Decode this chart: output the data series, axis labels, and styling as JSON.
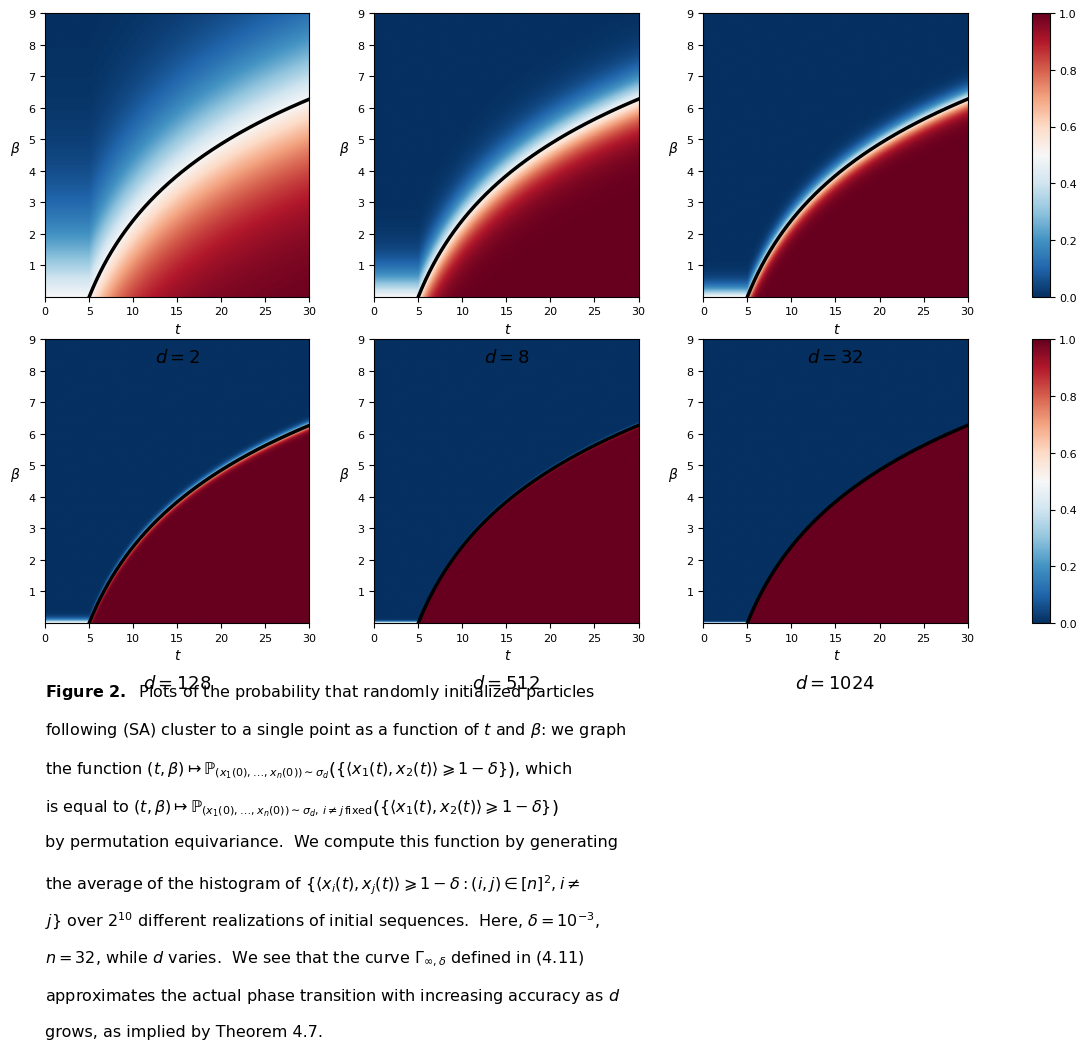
{
  "d_values": [
    2,
    8,
    32,
    128,
    512,
    1024
  ],
  "t_range": [
    0,
    30
  ],
  "beta_range": [
    0,
    9
  ],
  "t_points": 400,
  "beta_points": 400,
  "colormap": "RdBu_r",
  "curve_color": "black",
  "curve_lw": 2.5,
  "cbar_ticks": [
    0.0,
    0.2,
    0.4,
    0.6,
    0.8,
    1.0
  ],
  "xlabel": "t",
  "ylabel": "β",
  "figure_width": 10.8,
  "figure_height": 10.7,
  "t0_curve": 5.0,
  "c_curve": 3.5,
  "log_mode": true,
  "sharpness_d2": 0.7,
  "sharpness_d8": 2.0,
  "sharpness_d32": 5.0,
  "sharpness_d128": 15.0,
  "sharpness_d512": 40.0,
  "sharpness_d1024": 80.0,
  "caption_fontsize": 11.5
}
